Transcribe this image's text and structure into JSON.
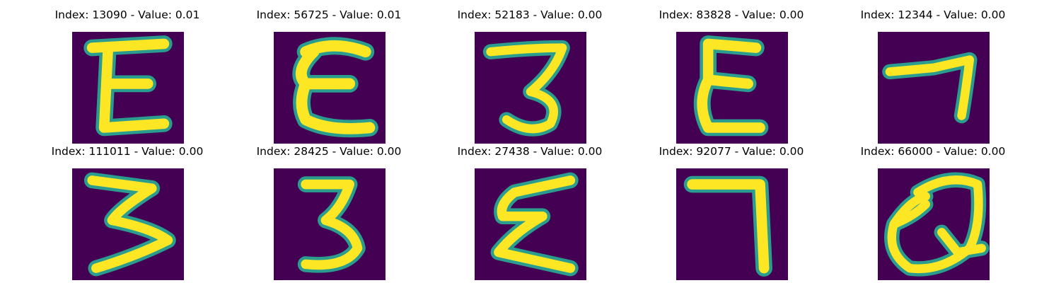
{
  "figure": {
    "colors": {
      "background": "#440154",
      "stroke_mid": "#2a9d8f",
      "stroke_high": "#fde725"
    },
    "panels": [
      {
        "title": "Index: 13090 - Value: 0.01",
        "glyph": "E-shape"
      },
      {
        "title": "Index: 56725 - Value: 0.01",
        "glyph": "E-shape"
      },
      {
        "title": "Index: 52183 - Value: 0.00",
        "glyph": "3-shape"
      },
      {
        "title": "Index: 83828 - Value: 0.00",
        "glyph": "E-shape"
      },
      {
        "title": "Index: 12344 - Value: 0.00",
        "glyph": "7-shape"
      },
      {
        "title": "Index: 111011 - Value: 0.00",
        "glyph": "3-shape"
      },
      {
        "title": "Index: 28425 - Value: 0.00",
        "glyph": "3-shape"
      },
      {
        "title": "Index: 27438 - Value: 0.00",
        "glyph": "sigma-shape"
      },
      {
        "title": "Index: 92077 - Value: 0.00",
        "glyph": "7-shape"
      },
      {
        "title": "Index: 66000 - Value: 0.00",
        "glyph": "Q-shape"
      }
    ]
  }
}
